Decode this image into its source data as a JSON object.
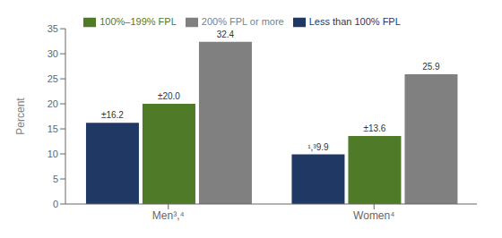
{
  "chart_data": {
    "type": "bar",
    "categories": [
      "Men³,⁴",
      "Women⁴"
    ],
    "series": [
      {
        "name": "Less than 100% FPL",
        "color": "#1f3864",
        "values": [
          16.2,
          9.9
        ],
        "value_labels": [
          "±16.2",
          "¹,³9.9"
        ]
      },
      {
        "name": "100%–199% FPL",
        "color": "#4f7a28",
        "values": [
          20.0,
          13.6
        ],
        "value_labels": [
          "±20.0",
          "±13.6"
        ]
      },
      {
        "name": "200% FPL or more",
        "color": "#808080",
        "values": [
          32.4,
          25.9
        ],
        "value_labels": [
          "32.4",
          "25.9"
        ]
      }
    ],
    "ylabel": "Percent",
    "ylim": [
      0,
      35
    ],
    "yticks": [
      0,
      5,
      10,
      15,
      20,
      25,
      30,
      35
    ],
    "grid": false,
    "legend": "top",
    "data_labels": true
  }
}
